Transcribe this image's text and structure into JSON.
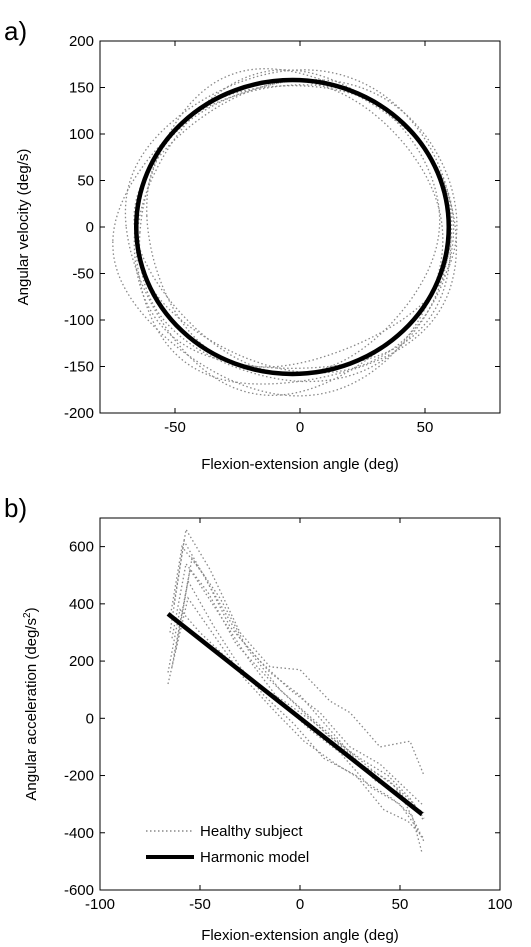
{
  "chart_data": [
    {
      "type": "line",
      "panel_label": "a)",
      "xlabel": "Flexion-extension angle (deg)",
      "ylabel": "Angular velocity (deg/s)",
      "xlim": [
        -80,
        80
      ],
      "ylim": [
        -200,
        200
      ],
      "xticks": [
        -50,
        0,
        50
      ],
      "yticks": [
        -200,
        -150,
        -100,
        -50,
        0,
        50,
        100,
        150,
        200
      ],
      "grid": false,
      "series": [
        {
          "style": "dotted",
          "color": "#888888",
          "loops": [
            {
              "angle_center": -3,
              "angle_amplitude": 63,
              "velocity_amplitude": 160,
              "velocity_offset": 0
            },
            {
              "angle_center": -4,
              "angle_amplitude": 64,
              "velocity_amplitude": 166,
              "velocity_offset": -8
            },
            {
              "angle_center": -2,
              "angle_amplitude": 62,
              "velocity_amplitude": 154,
              "velocity_offset": 4
            },
            {
              "angle_center": -5,
              "angle_amplitude": 65,
              "velocity_amplitude": 170,
              "velocity_offset": -6
            },
            {
              "angle_center": -3,
              "angle_amplitude": 61,
              "velocity_amplitude": 150,
              "velocity_offset": 0
            },
            {
              "angle_center": -6,
              "angle_amplitude": 66,
              "velocity_amplitude": 162,
              "velocity_offset": -12
            },
            {
              "angle_center": -1,
              "angle_amplitude": 63,
              "velocity_amplitude": 158,
              "velocity_offset": 6
            },
            {
              "angle_center": -4,
              "angle_amplitude": 62,
              "velocity_amplitude": 168,
              "velocity_offset": 2
            }
          ]
        },
        {
          "style": "solid",
          "color": "#000000",
          "ellipse": {
            "angle_center": -3,
            "angle_amplitude": 62.5,
            "velocity_center": 0,
            "velocity_amplitude": 158
          }
        }
      ]
    },
    {
      "type": "line",
      "panel_label": "b)",
      "xlabel": "Flexion-extension angle (deg)",
      "ylabel": "Angular acceleration (deg/s",
      "ylabel_superscript": "2",
      "ylabel_suffix": ")",
      "xlim": [
        -100,
        100
      ],
      "ylim": [
        -600,
        700
      ],
      "xticks": [
        -100,
        -50,
        0,
        50,
        100
      ],
      "yticks": [
        -600,
        -400,
        -200,
        0,
        200,
        400,
        600
      ],
      "grid": false,
      "legend": {
        "position": "bottom-left",
        "entries": [
          "Healthy subject",
          "Harmonic model"
        ]
      },
      "series": [
        {
          "name": "Healthy subject",
          "style": "dotted",
          "color": "#888888",
          "curves": [
            {
              "x": [
                -65,
                -58,
                -45,
                -30,
                -15,
                0,
                15,
                30,
                45,
                55,
                62
              ],
              "y": [
                300,
                620,
                460,
                280,
                160,
                80,
                -40,
                -160,
                -220,
                -300,
                -330
              ]
            },
            {
              "x": [
                -64,
                -55,
                -40,
                -25,
                -10,
                5,
                20,
                35,
                50,
                58,
                62
              ],
              "y": [
                180,
                520,
                360,
                200,
                60,
                -40,
                -120,
                -240,
                -300,
                -380,
                -430
              ]
            },
            {
              "x": [
                -63,
                -57,
                -45,
                -30,
                -15,
                0,
                15,
                25,
                40,
                55,
                62
              ],
              "y": [
                400,
                660,
                520,
                300,
                180,
                170,
                60,
                20,
                -100,
                -80,
                -200
              ]
            },
            {
              "x": [
                -66,
                -56,
                -42,
                -28,
                -12,
                2,
                18,
                32,
                46,
                56,
                61
              ],
              "y": [
                120,
                420,
                280,
                140,
                20,
                -80,
                -160,
                -220,
                -280,
                -340,
                -470
              ]
            },
            {
              "x": [
                -62,
                -54,
                -40,
                -26,
                -10,
                6,
                22,
                36,
                48,
                57,
                62
              ],
              "y": [
                240,
                560,
                420,
                240,
                100,
                0,
                -100,
                -180,
                -240,
                -300,
                -360
              ]
            },
            {
              "x": [
                -65,
                -59,
                -48,
                -35,
                -20,
                -5,
                10,
                25,
                40,
                52,
                61
              ],
              "y": [
                350,
                600,
                500,
                320,
                200,
                100,
                20,
                -100,
                -160,
                -240,
                -300
              ]
            },
            {
              "x": [
                -63,
                -56,
                -43,
                -30,
                -18,
                -3,
                12,
                28,
                42,
                54,
                62
              ],
              "y": [
                220,
                480,
                320,
                180,
                80,
                -20,
                -140,
                -200,
                -320,
                -360,
                -420
              ]
            },
            {
              "x": [
                -64,
                -57,
                -46,
                -32,
                -16,
                -1,
                14,
                30,
                44,
                55,
                62
              ],
              "y": [
                280,
                540,
                440,
                260,
                140,
                40,
                -60,
                -140,
                -200,
                -280,
                -350
              ]
            },
            {
              "x": [
                -66,
                -60,
                -50,
                -38,
                -22,
                -8,
                8,
                24,
                38,
                50,
                60
              ],
              "y": [
                160,
                380,
                300,
                220,
                120,
                60,
                -20,
                -120,
                -220,
                -260,
                -400
              ]
            }
          ]
        },
        {
          "name": "Harmonic model",
          "style": "solid",
          "color": "#000000",
          "x": [
            -66,
            61
          ],
          "y": [
            365,
            -335
          ]
        }
      ]
    }
  ]
}
